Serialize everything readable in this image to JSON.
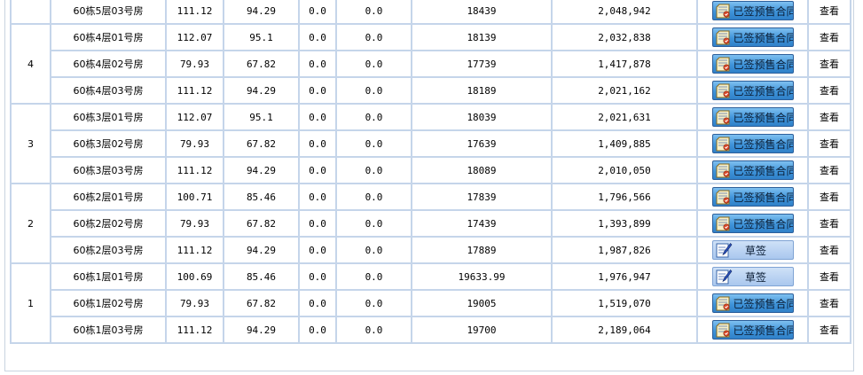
{
  "status_labels": {
    "signed": "已签预售合同",
    "draft": "草签"
  },
  "view_label": "查看",
  "colors": {
    "grid_border": "#c5d5ea",
    "signed_button": "#3f94da",
    "draft_button": "#a9c7ee"
  },
  "floors": [
    {
      "floor": "",
      "rooms": [
        {
          "room": "60栋5层03号房",
          "area_a": "111.12",
          "area_b": "94.29",
          "v1": "0.0",
          "v2": "0.0",
          "unit_price": "18439",
          "total": "2,048,942",
          "status": "signed"
        }
      ]
    },
    {
      "floor": "4",
      "rooms": [
        {
          "room": "60栋4层01号房",
          "area_a": "112.07",
          "area_b": "95.1",
          "v1": "0.0",
          "v2": "0.0",
          "unit_price": "18139",
          "total": "2,032,838",
          "status": "signed"
        },
        {
          "room": "60栋4层02号房",
          "area_a": "79.93",
          "area_b": "67.82",
          "v1": "0.0",
          "v2": "0.0",
          "unit_price": "17739",
          "total": "1,417,878",
          "status": "signed"
        },
        {
          "room": "60栋4层03号房",
          "area_a": "111.12",
          "area_b": "94.29",
          "v1": "0.0",
          "v2": "0.0",
          "unit_price": "18189",
          "total": "2,021,162",
          "status": "signed"
        }
      ]
    },
    {
      "floor": "3",
      "rooms": [
        {
          "room": "60栋3层01号房",
          "area_a": "112.07",
          "area_b": "95.1",
          "v1": "0.0",
          "v2": "0.0",
          "unit_price": "18039",
          "total": "2,021,631",
          "status": "signed"
        },
        {
          "room": "60栋3层02号房",
          "area_a": "79.93",
          "area_b": "67.82",
          "v1": "0.0",
          "v2": "0.0",
          "unit_price": "17639",
          "total": "1,409,885",
          "status": "signed"
        },
        {
          "room": "60栋3层03号房",
          "area_a": "111.12",
          "area_b": "94.29",
          "v1": "0.0",
          "v2": "0.0",
          "unit_price": "18089",
          "total": "2,010,050",
          "status": "signed"
        }
      ]
    },
    {
      "floor": "2",
      "rooms": [
        {
          "room": "60栋2层01号房",
          "area_a": "100.71",
          "area_b": "85.46",
          "v1": "0.0",
          "v2": "0.0",
          "unit_price": "17839",
          "total": "1,796,566",
          "status": "signed"
        },
        {
          "room": "60栋2层02号房",
          "area_a": "79.93",
          "area_b": "67.82",
          "v1": "0.0",
          "v2": "0.0",
          "unit_price": "17439",
          "total": "1,393,899",
          "status": "signed"
        },
        {
          "room": "60栋2层03号房",
          "area_a": "111.12",
          "area_b": "94.29",
          "v1": "0.0",
          "v2": "0.0",
          "unit_price": "17889",
          "total": "1,987,826",
          "status": "draft"
        }
      ]
    },
    {
      "floor": "1",
      "rooms": [
        {
          "room": "60栋1层01号房",
          "area_a": "100.69",
          "area_b": "85.46",
          "v1": "0.0",
          "v2": "0.0",
          "unit_price": "19633.99",
          "total": "1,976,947",
          "status": "draft"
        },
        {
          "room": "60栋1层02号房",
          "area_a": "79.93",
          "area_b": "67.82",
          "v1": "0.0",
          "v2": "0.0",
          "unit_price": "19005",
          "total": "1,519,070",
          "status": "signed"
        },
        {
          "room": "60栋1层03号房",
          "area_a": "111.12",
          "area_b": "94.29",
          "v1": "0.0",
          "v2": "0.0",
          "unit_price": "19700",
          "total": "2,189,064",
          "status": "signed"
        }
      ]
    }
  ]
}
